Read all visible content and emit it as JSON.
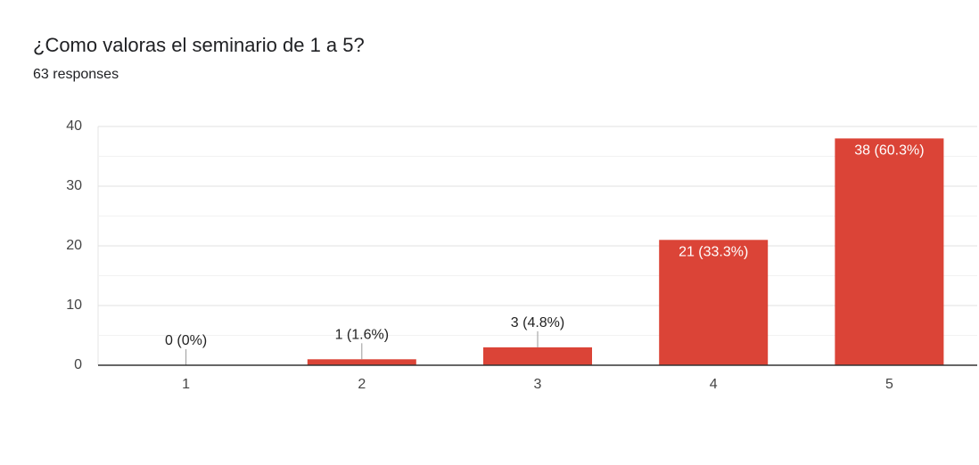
{
  "chart_data": {
    "type": "bar",
    "title": "¿Como valoras el seminario de 1 a 5?",
    "subtitle": "63 responses",
    "categories": [
      "1",
      "2",
      "3",
      "4",
      "5"
    ],
    "values": [
      0,
      1,
      3,
      21,
      38
    ],
    "value_labels": [
      "0 (0%)",
      "1 (1.6%)",
      "3 (4.8%)",
      "21 (33.3%)",
      "38 (60.3%)"
    ],
    "color": "#db4437",
    "ylim": [
      0,
      40
    ],
    "yticks": [
      0,
      10,
      20,
      30,
      40
    ],
    "grid": true,
    "minor_grid": true
  }
}
